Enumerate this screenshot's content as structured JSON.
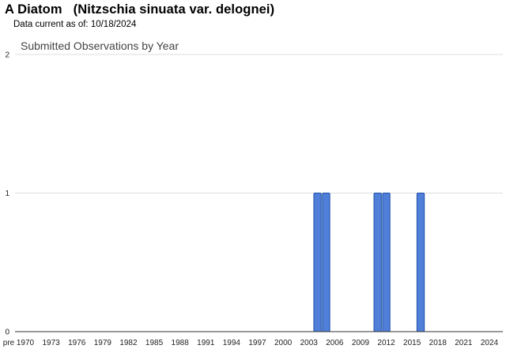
{
  "header": {
    "common_name": "A Diatom",
    "scientific_name": "(Nitzschia sinuata var. delognei)",
    "data_current_label": "Data current as of:",
    "data_current_date": "10/18/2024"
  },
  "chart_data": {
    "type": "bar",
    "title": "Submitted Observations by Year",
    "xlabel": "",
    "ylabel": "",
    "ylim": [
      0,
      2
    ],
    "y_ticks": [
      0,
      1,
      2
    ],
    "grid": true,
    "legend": "none",
    "bar_color": "#4f7fd8",
    "bar_border_color": "#1f4fa8",
    "x_tick_labels": [
      "pre",
      "1970",
      "1973",
      "1976",
      "1979",
      "1982",
      "1985",
      "1988",
      "1991",
      "1994",
      "1997",
      "2000",
      "2003",
      "2006",
      "2009",
      "2012",
      "2015",
      "2018",
      "2021",
      "2024"
    ],
    "categories": [
      "pre",
      "1970",
      "1971",
      "1972",
      "1973",
      "1974",
      "1975",
      "1976",
      "1977",
      "1978",
      "1979",
      "1980",
      "1981",
      "1982",
      "1983",
      "1984",
      "1985",
      "1986",
      "1987",
      "1988",
      "1989",
      "1990",
      "1991",
      "1992",
      "1993",
      "1994",
      "1995",
      "1996",
      "1997",
      "1998",
      "1999",
      "2000",
      "2001",
      "2002",
      "2003",
      "2004",
      "2005",
      "2006",
      "2007",
      "2008",
      "2009",
      "2010",
      "2011",
      "2012",
      "2013",
      "2014",
      "2015",
      "2016",
      "2017",
      "2018",
      "2019",
      "2020",
      "2021",
      "2022",
      "2023",
      "2024",
      "2025"
    ],
    "values": [
      0,
      0,
      0,
      0,
      0,
      0,
      0,
      0,
      0,
      0,
      0,
      0,
      0,
      0,
      0,
      0,
      0,
      0,
      0,
      0,
      0,
      0,
      0,
      0,
      0,
      0,
      0,
      0,
      0,
      0,
      0,
      0,
      0,
      0,
      0,
      1,
      1,
      0,
      0,
      0,
      0,
      0,
      1,
      1,
      0,
      0,
      0,
      1,
      0,
      0,
      0,
      0,
      0,
      0,
      0,
      0,
      0
    ]
  }
}
